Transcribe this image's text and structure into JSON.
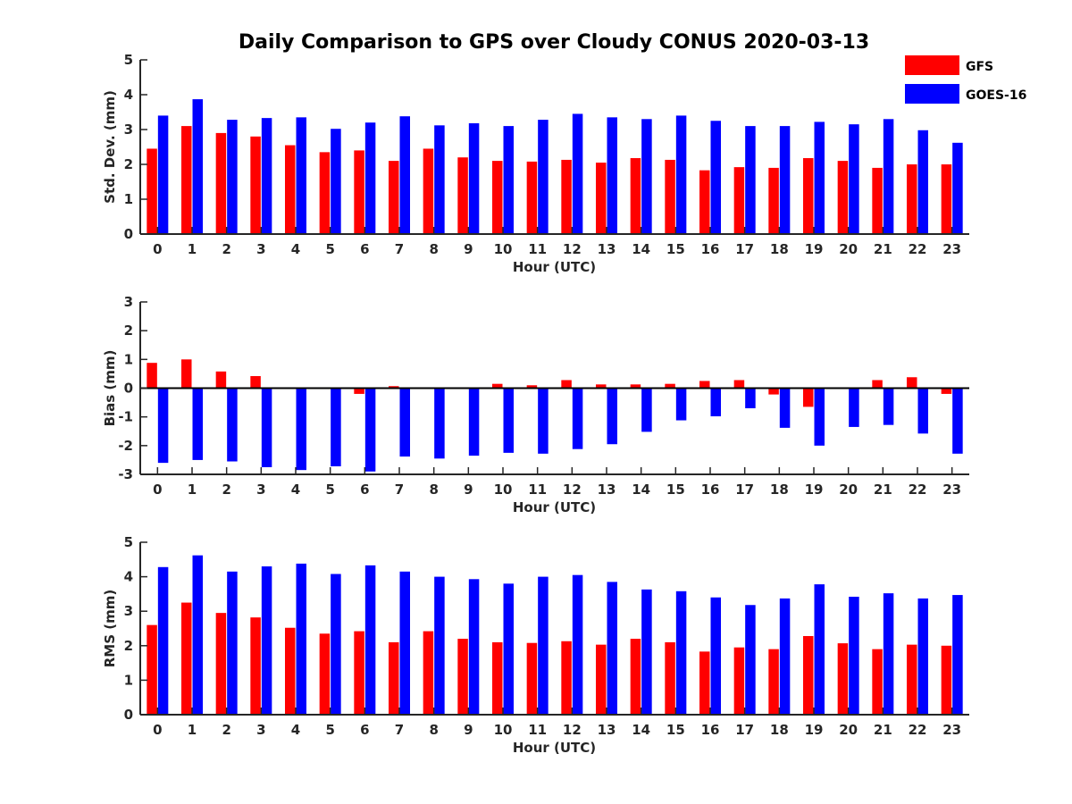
{
  "chart_data": {
    "type": "bar",
    "title": "Daily Comparison to GPS over Cloudy CONUS 2020-03-13",
    "legend": {
      "placement": "top-right",
      "entries": [
        "GFS",
        "GOES-16"
      ]
    },
    "colors": {
      "GFS": "#ff0000",
      "GOES-16": "#0000ff"
    },
    "grid": false,
    "categories": [
      "0",
      "1",
      "2",
      "3",
      "4",
      "5",
      "6",
      "7",
      "8",
      "9",
      "10",
      "11",
      "12",
      "13",
      "14",
      "15",
      "16",
      "17",
      "18",
      "19",
      "20",
      "21",
      "22",
      "23"
    ],
    "panels": [
      {
        "id": "std",
        "xlabel": "Hour (UTC)",
        "ylabel": "Std. Dev. (mm)",
        "ylim": [
          0,
          5
        ],
        "yticks": [
          "0",
          "1",
          "2",
          "3",
          "4",
          "5"
        ],
        "series": [
          {
            "name": "GFS",
            "values": [
              2.45,
              3.1,
              2.9,
              2.8,
              2.55,
              2.35,
              2.4,
              2.1,
              2.45,
              2.2,
              2.1,
              2.08,
              2.13,
              2.05,
              2.18,
              2.13,
              1.83,
              1.92,
              1.9,
              2.18,
              2.1,
              1.9,
              2.0,
              2.0
            ]
          },
          {
            "name": "GOES-16",
            "values": [
              3.4,
              3.87,
              3.28,
              3.33,
              3.35,
              3.02,
              3.2,
              3.38,
              3.12,
              3.18,
              3.1,
              3.28,
              3.45,
              3.35,
              3.3,
              3.4,
              3.25,
              3.1,
              3.1,
              3.22,
              3.15,
              3.3,
              2.98,
              2.62
            ]
          }
        ]
      },
      {
        "id": "bias",
        "xlabel": "Hour (UTC)",
        "ylabel": "Bias (mm)",
        "ylim": [
          -3,
          3
        ],
        "yticks": [
          "-3",
          "-2",
          "-1",
          "0",
          "1",
          "2",
          "3"
        ],
        "series": [
          {
            "name": "GFS",
            "values": [
              0.88,
              1.0,
              0.58,
              0.42,
              -0.03,
              0.0,
              -0.2,
              0.07,
              0.0,
              0.0,
              0.15,
              0.1,
              0.28,
              0.13,
              0.13,
              0.15,
              0.25,
              0.28,
              -0.22,
              -0.65,
              0.0,
              0.28,
              0.38,
              -0.2
            ]
          },
          {
            "name": "GOES-16",
            "values": [
              -2.6,
              -2.5,
              -2.55,
              -2.75,
              -2.85,
              -2.72,
              -2.9,
              -2.38,
              -2.45,
              -2.35,
              -2.25,
              -2.28,
              -2.12,
              -1.95,
              -1.52,
              -1.12,
              -0.98,
              -0.7,
              -1.38,
              -2.0,
              -1.35,
              -1.28,
              -1.58,
              -2.28
            ]
          }
        ]
      },
      {
        "id": "rms",
        "xlabel": "Hour (UTC)",
        "ylabel": "RMS (mm)",
        "ylim": [
          0,
          5
        ],
        "yticks": [
          "0",
          "1",
          "2",
          "3",
          "4",
          "5"
        ],
        "series": [
          {
            "name": "GFS",
            "values": [
              2.6,
              3.25,
              2.95,
              2.82,
              2.52,
              2.35,
              2.42,
              2.1,
              2.42,
              2.2,
              2.1,
              2.08,
              2.13,
              2.03,
              2.2,
              2.1,
              1.83,
              1.95,
              1.9,
              2.28,
              2.07,
              1.9,
              2.03,
              2.0
            ]
          },
          {
            "name": "GOES-16",
            "values": [
              4.28,
              4.62,
              4.15,
              4.3,
              4.38,
              4.08,
              4.33,
              4.15,
              4.0,
              3.93,
              3.8,
              4.0,
              4.05,
              3.85,
              3.63,
              3.58,
              3.4,
              3.18,
              3.37,
              3.78,
              3.42,
              3.52,
              3.37,
              3.47
            ]
          }
        ]
      }
    ]
  }
}
